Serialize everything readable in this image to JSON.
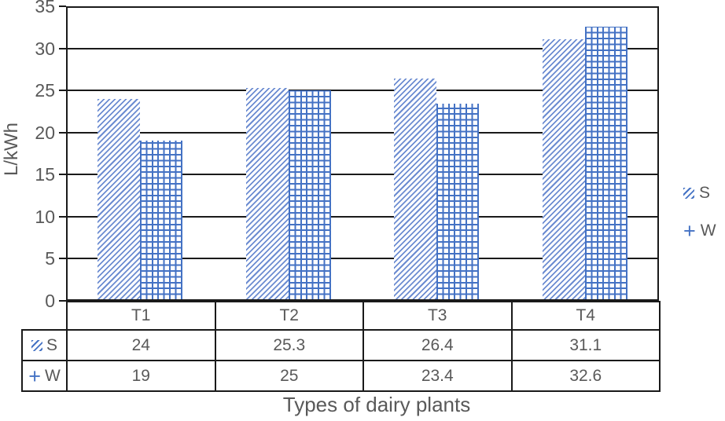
{
  "chart_data": {
    "type": "bar",
    "title": "",
    "xlabel": "Types of dairy plants",
    "ylabel": "L/kWh",
    "categories": [
      "T1",
      "T2",
      "T3",
      "T4"
    ],
    "series": [
      {
        "name": "S",
        "pattern": "diagonal-hatch",
        "values": [
          24,
          25.3,
          26.4,
          31.1
        ]
      },
      {
        "name": "W",
        "pattern": "cross-hatch",
        "values": [
          19,
          25,
          23.4,
          32.6
        ]
      }
    ],
    "ylim": [
      0,
      35
    ],
    "yticks": [
      0,
      5,
      10,
      15,
      20,
      25,
      30,
      35
    ],
    "grid": true,
    "legend_position": "right",
    "data_table_shown": true,
    "colors": {
      "series_blue": "#4472c4",
      "diagonal_hatch_blue": "#6c8cd1",
      "text": "#595959",
      "line": "#1a1a1a"
    }
  },
  "icons": {
    "s_swatch": "diagonal-hatch-swatch",
    "plus_marker": "+"
  }
}
